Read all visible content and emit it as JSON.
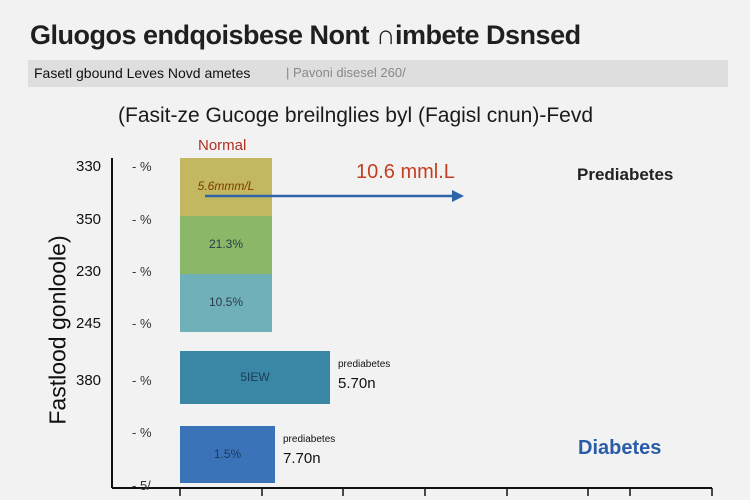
{
  "page": {
    "title": "Gluogos endqoisbese Nont ∩imbete Dsnsed",
    "subtitle_main": "Fasetl gbound Leves  Novd ametes",
    "subtitle_aux": "| Pavoni disesel 260/"
  },
  "chart_data": {
    "type": "bar",
    "title": "(Fasit-ze Gucoge breilnglies byl (Fagisl cnun)-Fevd",
    "ylabel": "Fastlood gonloole)",
    "yticks": [
      "330",
      "350",
      "230",
      "245",
      "380",
      ""
    ],
    "ytick_pct": [
      "- %",
      "- %",
      "- %",
      "- %",
      "- %",
      "- %",
      "- 5/"
    ],
    "stack_segments": [
      {
        "label": "5.6mmm/L",
        "value": 1,
        "color": "#c3b85f"
      },
      {
        "label": "21.3%",
        "value": 1,
        "color": "#8ab868"
      },
      {
        "label": "10.5%",
        "value": 1,
        "color": "#70b0b8"
      }
    ],
    "bars": [
      {
        "label": "5IEW",
        "side_label": "prediabetes",
        "side_value": "5.70n",
        "value": 150,
        "color": "#3a86a5"
      },
      {
        "label": "1.5%",
        "side_label": "prediabetes",
        "side_value": "7.70n",
        "value": 95,
        "color": "#3a73b8"
      }
    ],
    "top_label": "Normal",
    "annotation": "10.6 mml.L",
    "categories": [
      "Prediabetes",
      "Diabetes"
    ],
    "colors": {
      "normal_text": "#b03020",
      "annotation": "#c24020",
      "arrow": "#2e64a8",
      "diabetes_text": "#2a5ca8"
    }
  }
}
